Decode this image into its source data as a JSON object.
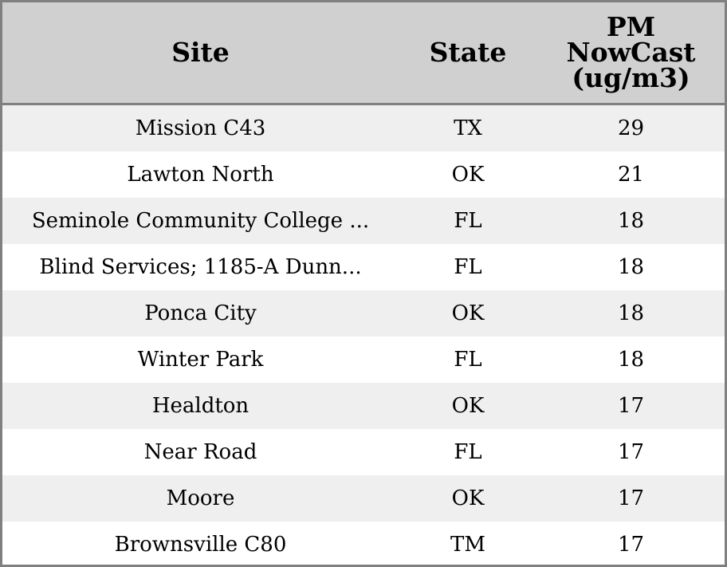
{
  "chart_data": {
    "type": "table",
    "columns": [
      "Site",
      "State",
      "PM\nNowCast\n(ug/m3)"
    ],
    "rows": [
      [
        "Mission C43",
        "TX",
        "29"
      ],
      [
        "Lawton North",
        "OK",
        "21"
      ],
      [
        "Seminole Community College ...",
        "FL",
        "18"
      ],
      [
        "Blind Services; 1185-A Dunn...",
        "FL",
        "18"
      ],
      [
        "Ponca City",
        "OK",
        "18"
      ],
      [
        "Winter Park",
        "FL",
        "18"
      ],
      [
        "Healdton",
        "OK",
        "17"
      ],
      [
        "Near Road",
        "FL",
        "17"
      ],
      [
        "Moore",
        "OK",
        "17"
      ],
      [
        "Brownsville C80",
        "TM",
        "17"
      ]
    ],
    "values": [
      29,
      21,
      18,
      18,
      18,
      18,
      17,
      17,
      17,
      17
    ]
  },
  "colors": {
    "header_background": "#d0d0d0",
    "border": "#808080",
    "row_even": "#efefef",
    "row_odd": "#ffffff",
    "text": "#000000"
  }
}
